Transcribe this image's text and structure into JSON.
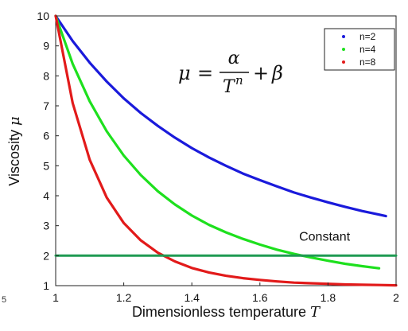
{
  "chart_data": {
    "type": "line",
    "title": "",
    "xlabel": "Dimensionless temperature",
    "xlabel_symbol": "T",
    "ylabel": "Viscosity",
    "ylabel_symbol": "μ",
    "xlim": [
      1,
      2
    ],
    "ylim": [
      1,
      10
    ],
    "xticks": [
      "1",
      "1.2",
      "1.4",
      "1.6",
      "1.8",
      "2"
    ],
    "yticks": [
      "1",
      "2",
      "3",
      "4",
      "5",
      "6",
      "7",
      "8",
      "9",
      "10"
    ],
    "grid": false,
    "legend_position": "top-right",
    "series": [
      {
        "name": "n=2",
        "color": "#1a1adb",
        "x": [
          1.0,
          1.05,
          1.1,
          1.15,
          1.2,
          1.25,
          1.3,
          1.35,
          1.4,
          1.45,
          1.5,
          1.55,
          1.6,
          1.65,
          1.7,
          1.75,
          1.8,
          1.85,
          1.9,
          1.95,
          1.97
        ],
        "y": [
          10.0,
          9.16,
          8.44,
          7.81,
          7.25,
          6.76,
          6.33,
          5.94,
          5.59,
          5.28,
          5.0,
          4.74,
          4.52,
          4.31,
          4.11,
          3.94,
          3.78,
          3.63,
          3.49,
          3.37,
          3.32
        ]
      },
      {
        "name": "n=4",
        "color": "#1ee01e",
        "x": [
          1.0,
          1.05,
          1.1,
          1.15,
          1.2,
          1.25,
          1.3,
          1.35,
          1.4,
          1.45,
          1.5,
          1.55,
          1.6,
          1.65,
          1.7,
          1.75,
          1.8,
          1.85,
          1.9,
          1.95
        ],
        "y": [
          10.0,
          8.4,
          7.15,
          6.15,
          5.34,
          4.69,
          4.15,
          3.71,
          3.34,
          3.03,
          2.78,
          2.56,
          2.37,
          2.2,
          2.06,
          1.94,
          1.83,
          1.73,
          1.65,
          1.58
        ]
      },
      {
        "name": "n=8",
        "color": "#e21a1a",
        "x": [
          1.0,
          1.05,
          1.1,
          1.15,
          1.2,
          1.25,
          1.3,
          1.35,
          1.4,
          1.45,
          1.5,
          1.55,
          1.6,
          1.65,
          1.7,
          1.75,
          1.8,
          1.85,
          1.9,
          1.95,
          2.0
        ],
        "y": [
          10.0,
          7.09,
          5.2,
          3.94,
          3.09,
          2.51,
          2.1,
          1.81,
          1.59,
          1.44,
          1.33,
          1.25,
          1.19,
          1.14,
          1.1,
          1.08,
          1.06,
          1.04,
          1.03,
          1.02,
          1.01
        ]
      },
      {
        "name": "Constant",
        "color": "#1f9a52",
        "x": [
          1.0,
          2.0
        ],
        "y": [
          2.0,
          2.0
        ]
      }
    ],
    "annotations": [
      {
        "text": "Constant",
        "x": 1.79,
        "y": 2.5
      }
    ]
  },
  "equation": {
    "lhs": "μ",
    "equals": "=",
    "numerator": "α",
    "denominator_base": "T",
    "denominator_exp": "n",
    "plus": "+",
    "beta": "β"
  },
  "stray_label": "5"
}
